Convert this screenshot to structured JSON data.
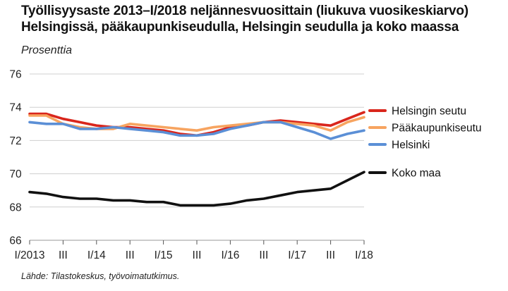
{
  "chart_data": {
    "type": "line",
    "title_line1": "Työllisyysaste 2013–I/2018 neljännesvuosittain (liukuva vuosikeskiarvo)",
    "title_line2": "Helsingissä, pääkaupunkiseudulla, Helsingin seudulla ja koko maassa",
    "unit_label": "Prosenttia",
    "source": "Lähde: Tilastokeskus, työvoimatutkimus.",
    "ylim": [
      66,
      76
    ],
    "yticks": [
      66,
      68,
      70,
      72,
      74,
      76
    ],
    "grid": true,
    "legend_position": "right",
    "x": [
      "I/2013",
      "II/2013",
      "III/2013",
      "IV/2013",
      "I/2014",
      "II/2014",
      "III/2014",
      "IV/2014",
      "I/2015",
      "II/2015",
      "III/2015",
      "IV/2015",
      "I/2016",
      "II/2016",
      "III/2016",
      "IV/2016",
      "I/2017",
      "II/2017",
      "III/2017",
      "IV/2017",
      "I/2018"
    ],
    "xtick_labels": [
      "I/2013",
      "III",
      "I/14",
      "III",
      "I/15",
      "III",
      "I/16",
      "III",
      "I/17",
      "III",
      "I/18"
    ],
    "series": [
      {
        "name": "Helsingin seutu",
        "color": "#d9261c",
        "values": [
          73.6,
          73.6,
          73.3,
          73.1,
          72.9,
          72.8,
          72.8,
          72.7,
          72.6,
          72.4,
          72.3,
          72.5,
          72.8,
          72.9,
          73.1,
          73.2,
          73.1,
          73.0,
          72.9,
          73.3,
          73.7
        ]
      },
      {
        "name": "Pääkaupunkiseutu",
        "color": "#f7a460",
        "values": [
          73.5,
          73.5,
          73.0,
          72.8,
          72.7,
          72.7,
          73.0,
          72.9,
          72.8,
          72.7,
          72.6,
          72.8,
          72.9,
          73.0,
          73.1,
          73.1,
          73.0,
          72.9,
          72.6,
          73.1,
          73.4
        ]
      },
      {
        "name": "Helsinki",
        "color": "#5b8fd6",
        "values": [
          73.1,
          73.0,
          73.0,
          72.7,
          72.7,
          72.8,
          72.7,
          72.6,
          72.5,
          72.3,
          72.3,
          72.4,
          72.7,
          72.9,
          73.1,
          73.1,
          72.8,
          72.5,
          72.1,
          72.4,
          72.6
        ]
      },
      {
        "name": "Koko maa",
        "color": "#111111",
        "values": [
          68.9,
          68.8,
          68.6,
          68.5,
          68.5,
          68.4,
          68.4,
          68.3,
          68.3,
          68.1,
          68.1,
          68.1,
          68.2,
          68.4,
          68.5,
          68.7,
          68.9,
          69.0,
          69.1,
          69.6,
          70.1
        ]
      }
    ]
  }
}
